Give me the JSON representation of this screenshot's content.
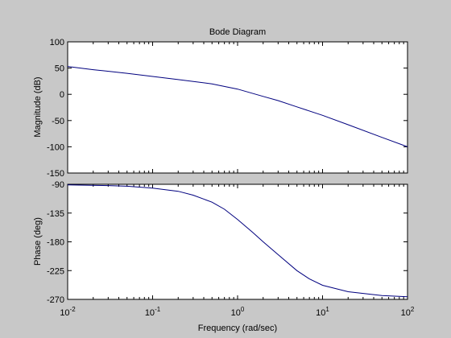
{
  "chart_data": {
    "title": "Bode Diagram",
    "xlabel": "Frequency  (rad/sec)",
    "x_scale": "log",
    "xlim": [
      0.01,
      100
    ],
    "x_ticks": [
      {
        "value": 0.01,
        "base": "10",
        "exp": "-2"
      },
      {
        "value": 0.1,
        "base": "10",
        "exp": "-1"
      },
      {
        "value": 1,
        "base": "10",
        "exp": "0"
      },
      {
        "value": 10,
        "base": "10",
        "exp": "1"
      },
      {
        "value": 100,
        "base": "10",
        "exp": "2"
      }
    ],
    "line_color": "#00007f",
    "panels": [
      {
        "type": "line",
        "ylabel": "Magnitude (dB)",
        "ylim": [
          -150,
          100
        ],
        "y_ticks": [
          100,
          50,
          0,
          -50,
          -100,
          -150
        ],
        "x": [
          0.01,
          0.02,
          0.05,
          0.1,
          0.2,
          0.5,
          1,
          2,
          3,
          5,
          10,
          20,
          50,
          100
        ],
        "y": [
          53,
          47,
          40,
          34,
          28,
          20,
          10,
          -4,
          -12,
          -24,
          -40,
          -58,
          -82,
          -100
        ]
      },
      {
        "type": "line",
        "ylabel": "Phase (deg)",
        "ylim": [
          -270,
          -90
        ],
        "y_ticks": [
          -90,
          -135,
          -180,
          -225,
          -270
        ],
        "x": [
          0.01,
          0.03,
          0.05,
          0.1,
          0.2,
          0.3,
          0.5,
          0.7,
          1,
          1.5,
          2,
          3,
          5,
          7,
          10,
          20,
          50,
          100
        ],
        "y": [
          -91,
          -92,
          -93,
          -96,
          -101,
          -107,
          -118,
          -129,
          -145,
          -165,
          -180,
          -200,
          -225,
          -238,
          -248,
          -258,
          -264,
          -266
        ]
      }
    ]
  }
}
